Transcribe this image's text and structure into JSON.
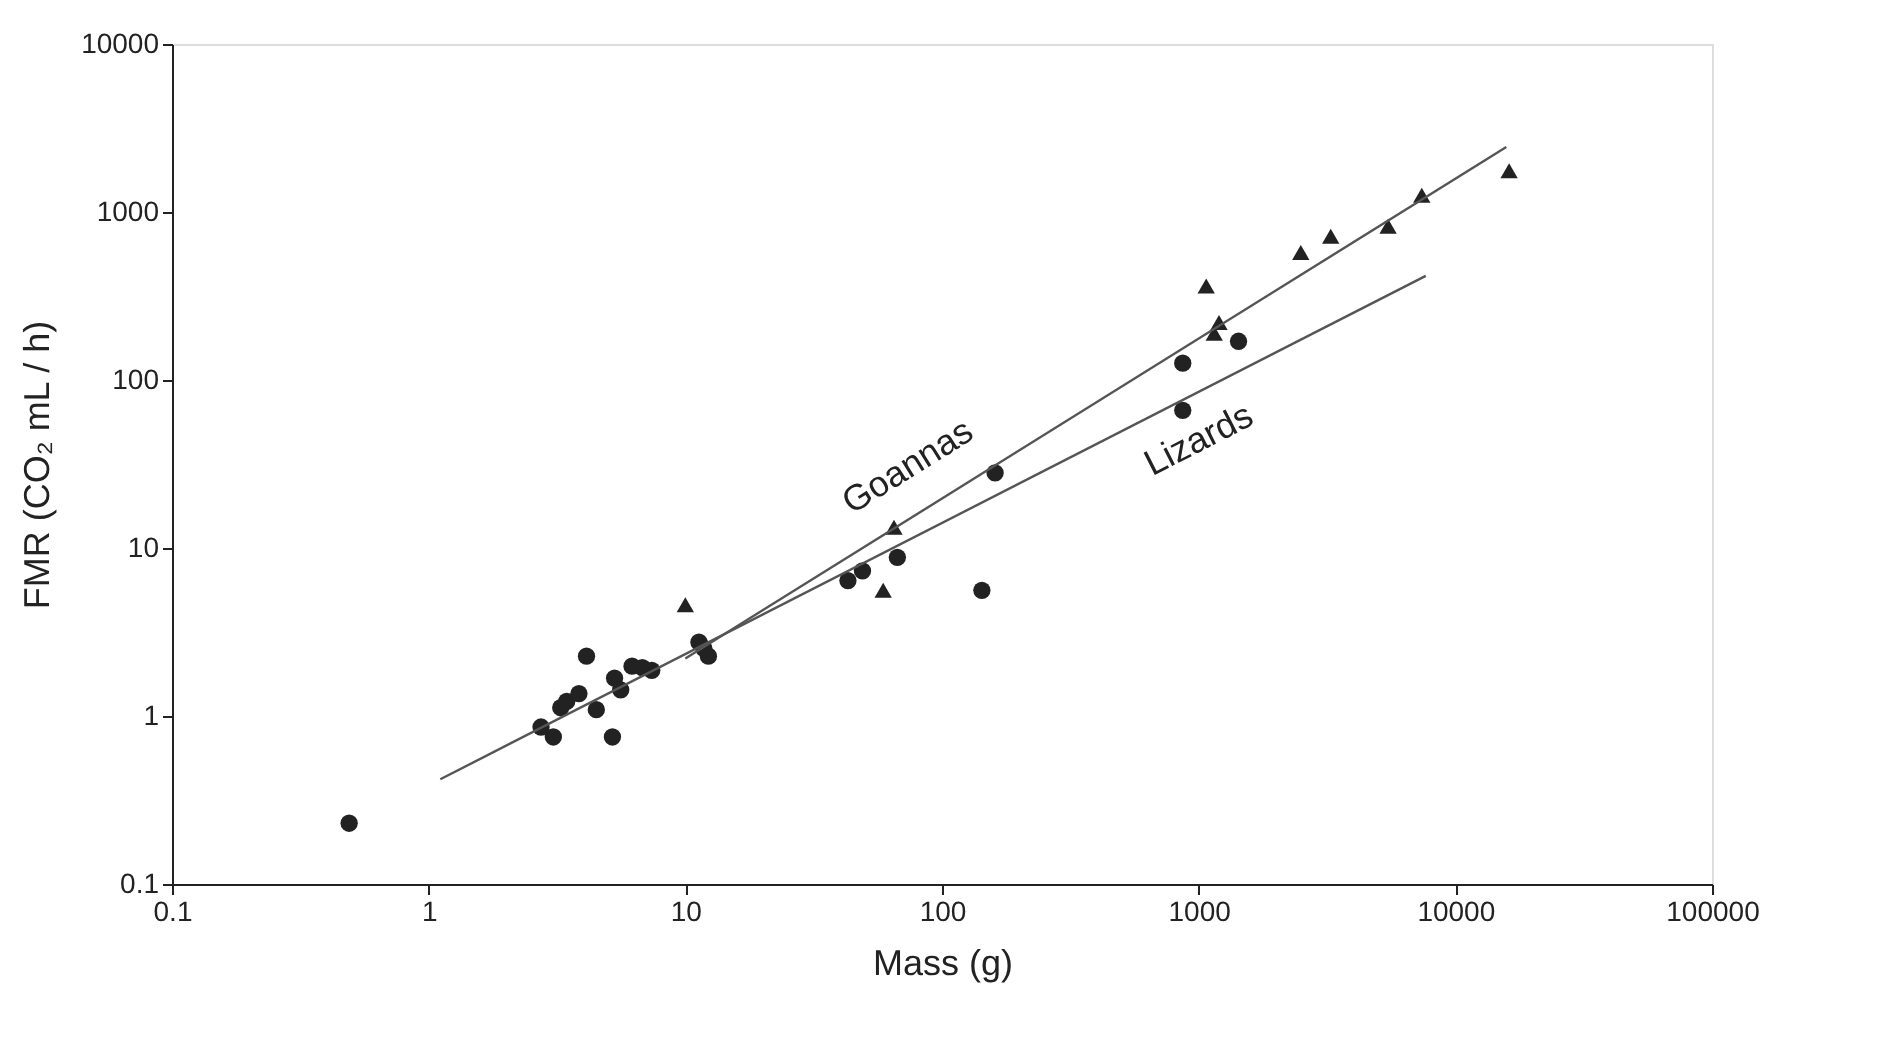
{
  "chart_data": {
    "type": "scatter",
    "xlabel": "Mass (g)",
    "ylabel": "FMR (CO₂ mL / h)",
    "log": "xy",
    "xlim": [
      0.1,
      100000
    ],
    "ylim": [
      0.1,
      10000
    ],
    "xticks": [
      0.1,
      1,
      10,
      100,
      1000,
      10000,
      100000
    ],
    "yticks": [
      0.1,
      1,
      10,
      100,
      1000,
      10000
    ],
    "grid": false,
    "legend": false,
    "series": [
      {
        "marker": "circle",
        "color": "#222222",
        "x": [
          0.49,
          2.74,
          3.06,
          3.27,
          3.45,
          3.85,
          4.12,
          4.5,
          5.2,
          5.3,
          5.6,
          6.2,
          6.8,
          7.4,
          11.3,
          11.8,
          12.3,
          43,
          49,
          67,
          143,
          161,
          867,
          867,
          1430
        ],
        "values": [
          0.23,
          0.86,
          0.75,
          1.12,
          1.22,
          1.36,
          2.27,
          1.09,
          0.75,
          1.68,
          1.43,
          1.98,
          1.94,
          1.87,
          2.75,
          2.53,
          2.27,
          6.4,
          7.3,
          8.8,
          5.6,
          28,
          66,
          126,
          170
        ]
      },
      {
        "marker": "triangle",
        "color": "#222222",
        "x": [
          10,
          59,
          65,
          1070,
          1150,
          1200,
          2500,
          3270,
          5470,
          7400,
          16200
        ],
        "values": [
          4.6,
          5.6,
          13.3,
          363,
          190,
          220,
          575,
          718,
          822,
          1260,
          1760
        ]
      },
      {
        "type": "line",
        "name": "Goannas",
        "marker": "none",
        "line_style": "solid",
        "color": "#555555",
        "x": [
          10,
          15800
        ],
        "values": [
          2.2,
          2440
        ]
      },
      {
        "type": "line",
        "name": "Lizards",
        "marker": "none",
        "line_style": "solid",
        "color": "#555555",
        "x": [
          1.11,
          7670
        ],
        "values": [
          0.42,
          417
        ]
      }
    ]
  }
}
